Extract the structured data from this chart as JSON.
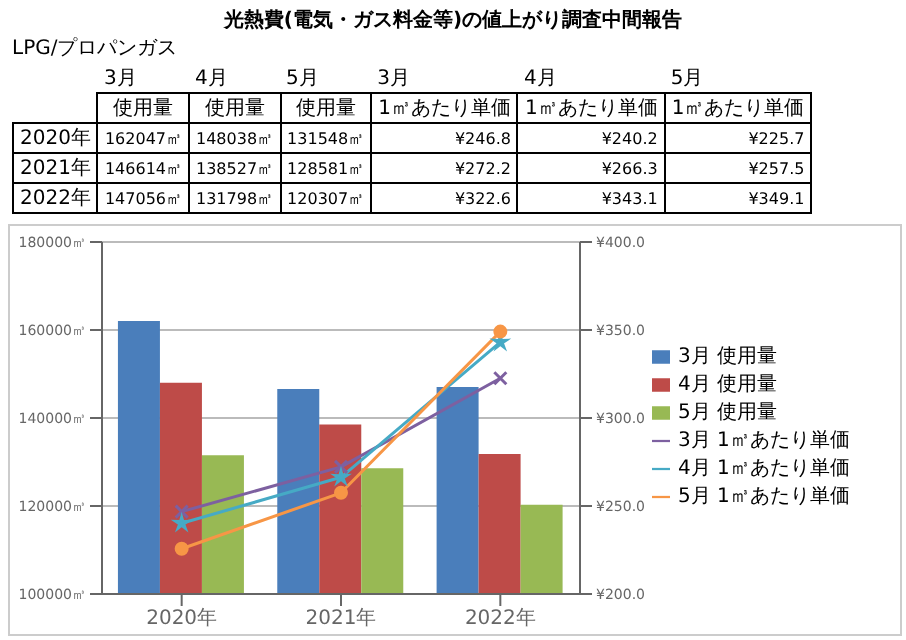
{
  "chart_data": [
    {
      "type": "other",
      "title": "光熱費(電気・ガス料金等)の値上がり調査中間報告",
      "annotations": [
        "LPG/プロパンガス",
        "3月",
        "4月",
        "5月",
        "3月",
        "4月",
        "5月",
        "使用量",
        "使用量",
        "使用量",
        "1㎥あたり単価",
        "1㎥あたり単価",
        "1㎥あたり単価",
        "2020年",
        "162047㎥",
        "148038㎥",
        "131548㎥",
        "¥246.8",
        "¥240.2",
        "¥225.7",
        "2021年",
        "146614㎥",
        "138527㎥",
        "128581㎥",
        "¥272.2",
        "¥266.3",
        "¥257.5",
        "2022年",
        "147056㎥",
        "131798㎥",
        "120307㎥",
        "¥322.6",
        "¥343.1",
        "¥349.1"
      ]
    },
    {
      "type": "bar",
      "categories": [
        "2020年",
        "2021年",
        "2022年"
      ],
      "series": [
        {
          "name": "3月 使用量",
          "type": "bar",
          "color": "#4a7ebb",
          "values": [
            162047,
            146614,
            147056
          ]
        },
        {
          "name": "4月 使用量",
          "type": "bar",
          "color": "#be4b48",
          "values": [
            148038,
            138527,
            131798
          ]
        },
        {
          "name": "5月 使用量",
          "type": "bar",
          "color": "#98b954",
          "values": [
            131548,
            128581,
            120307
          ]
        },
        {
          "name": "3月 1㎥あたり単価",
          "type": "line",
          "axis": "y2",
          "marker": "cross",
          "color": "#7d60a0",
          "values": [
            246.8,
            272.2,
            322.6
          ]
        },
        {
          "name": "4月 1㎥あたり単価",
          "type": "line",
          "axis": "y2",
          "marker": "star",
          "color": "#46aac5",
          "values": [
            240.2,
            266.3,
            343.1
          ]
        },
        {
          "name": "5月 1㎥あたり単価",
          "type": "line",
          "axis": "y2",
          "marker": "circle",
          "color": "#f79646",
          "values": [
            225.7,
            257.5,
            349.1
          ]
        }
      ],
      "ylim": [
        100000,
        180000
      ],
      "yticks": [
        {
          "value": 100000,
          "label": "100000㎥"
        },
        {
          "value": 120000,
          "label": "120000㎥"
        },
        {
          "value": 140000,
          "label": "140000㎥"
        },
        {
          "value": 160000,
          "label": "160000㎥"
        },
        {
          "value": 180000,
          "label": "180000㎥"
        }
      ],
      "y2lim": [
        200,
        400
      ],
      "y2ticks": [
        {
          "value": 200,
          "label": "¥200.0"
        },
        {
          "value": 250,
          "label": "¥250.0"
        },
        {
          "value": 300,
          "label": "¥300.0"
        },
        {
          "value": 350,
          "label": "¥350.0"
        },
        {
          "value": 400,
          "label": "¥400.0"
        }
      ],
      "grid": "y",
      "legend": "right"
    }
  ]
}
